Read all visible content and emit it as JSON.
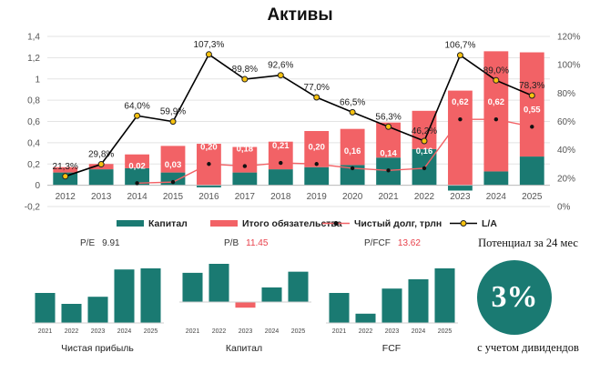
{
  "colors": {
    "equity": "#1a7a72",
    "liabilities": "#f26266",
    "debt_line": "#f26266",
    "la_dot": "#f7c20f",
    "text_red": "#e8404a"
  },
  "chart_data": {
    "type": "bar",
    "title": "Активы",
    "categories": [
      "2012",
      "2013",
      "2014",
      "2015",
      "2016",
      "2017",
      "2018",
      "2019",
      "2020",
      "2021",
      "2022",
      "2023",
      "2024",
      "2025"
    ],
    "ylim": [
      -0.2,
      1.4
    ],
    "y2lim": [
      0,
      120
    ],
    "y_ticks": [
      "1,4",
      "1,2",
      "1",
      "0,8",
      "0,6",
      "0,4",
      "0,2",
      "0",
      "-0,2"
    ],
    "y2_ticks": [
      "120%",
      "100%",
      "80%",
      "60%",
      "40%",
      "20%",
      "0%"
    ],
    "series": [
      {
        "name": "Капитал",
        "type": "bar",
        "values": [
          0.12,
          0.15,
          0.16,
          0.12,
          -0.02,
          0.12,
          0.15,
          0.17,
          0.19,
          0.26,
          0.34,
          -0.05,
          0.13,
          0.27
        ]
      },
      {
        "name": "Итого обязательства",
        "type": "bar",
        "values": [
          0.05,
          0.05,
          0.13,
          0.25,
          0.39,
          0.24,
          0.26,
          0.34,
          0.34,
          0.33,
          0.36,
          0.89,
          1.13,
          0.98
        ]
      },
      {
        "name": "Чистый долг, трлн",
        "type": "line",
        "values": [
          null,
          null,
          0.02,
          0.03,
          0.2,
          0.18,
          0.21,
          0.2,
          0.16,
          0.14,
          0.16,
          0.62,
          0.62,
          0.55
        ],
        "labels": [
          "",
          "",
          "0,02",
          "0,03",
          "0,20",
          "0,18",
          "0,21",
          "0,20",
          "0,16",
          "0,14",
          "0,16",
          "0,62",
          "0,62",
          "0,55"
        ]
      },
      {
        "name": "L/A",
        "type": "line",
        "axis": "right",
        "values": [
          21.3,
          29.8,
          64.0,
          59.9,
          107.3,
          89.8,
          92.6,
          77.0,
          66.5,
          56.3,
          46.2,
          106.7,
          89.0,
          78.3
        ],
        "labels": [
          "21,3%",
          "29,8%",
          "64,0%",
          "59,9%",
          "107,3%",
          "89,8%",
          "92,6%",
          "77,0%",
          "66,5%",
          "56,3%",
          "46,2%",
          "106,7%",
          "89,0%",
          "78,3%"
        ]
      }
    ],
    "legend": [
      "Капитал",
      "Итого обязательства",
      "Чистый долг, трлн",
      "L/A"
    ]
  },
  "metrics": {
    "pe": {
      "label": "P/E",
      "value": "9.91"
    },
    "pb": {
      "label": "P/B",
      "value": "11.45"
    },
    "pfcf": {
      "label": "P/FCF",
      "value": "13.62"
    }
  },
  "small_charts": [
    {
      "title": "Чистая прибыль",
      "categories": [
        "2021",
        "2022",
        "2023",
        "2024",
        "2025"
      ],
      "values": [
        0.55,
        0.35,
        0.48,
        0.98,
        1.0
      ]
    },
    {
      "title": "Капитал",
      "categories": [
        "2021",
        "2022",
        "2023",
        "2024",
        "2025"
      ],
      "values": [
        0.26,
        0.34,
        -0.05,
        0.13,
        0.27
      ]
    },
    {
      "title": "FCF",
      "categories": [
        "2021",
        "2022",
        "2023",
        "2024",
        "2025"
      ],
      "values": [
        0.55,
        0.17,
        0.63,
        0.8,
        1.0
      ]
    }
  ],
  "potential": {
    "title": "Потенциал за 24 мес",
    "value": "3%",
    "subtitle": "с учетом дивидендов"
  }
}
